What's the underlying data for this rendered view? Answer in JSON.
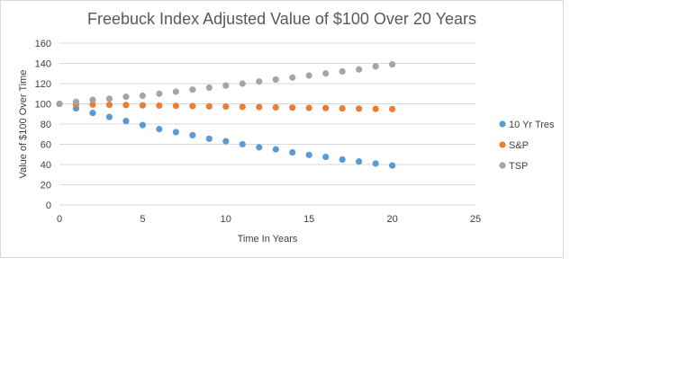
{
  "chart_data": {
    "type": "scatter",
    "title": "Freebuck Index Adjusted Value of $100 Over 20 Years",
    "xlabel": "Time In Years",
    "ylabel": "Value of $100 Over Time",
    "xlim": [
      0,
      25
    ],
    "ylim": [
      0,
      160
    ],
    "xticks": [
      0,
      5,
      10,
      15,
      20,
      25
    ],
    "yticks": [
      0,
      20,
      40,
      60,
      80,
      100,
      120,
      140,
      160
    ],
    "grid": "horizontal",
    "legend_position": "right",
    "x": [
      0,
      1,
      2,
      3,
      4,
      5,
      6,
      7,
      8,
      9,
      10,
      11,
      12,
      13,
      14,
      15,
      16,
      17,
      18,
      19,
      20
    ],
    "series": [
      {
        "name": "10 Yr Tres",
        "color": "#5b9bd5",
        "values": [
          100,
          95.5,
          91,
          87,
          83,
          79,
          75,
          72,
          69,
          65.5,
          63,
          60,
          57,
          55,
          52,
          49.5,
          47.5,
          45,
          43,
          41,
          39
        ]
      },
      {
        "name": "S&P",
        "color": "#ed7d31",
        "values": [
          100,
          99.5,
          99.3,
          99,
          98.8,
          98.5,
          98.3,
          98,
          97.8,
          97.5,
          97.3,
          97,
          96.8,
          96.5,
          96.3,
          96,
          95.8,
          95.5,
          95.3,
          95,
          94.8
        ]
      },
      {
        "name": "TSP",
        "color": "#a5a5a5",
        "values": [
          100,
          102,
          104,
          105,
          107,
          108,
          110,
          112,
          114,
          116,
          118,
          120,
          122,
          124,
          126,
          128,
          130,
          132,
          134,
          137,
          139
        ]
      }
    ]
  }
}
